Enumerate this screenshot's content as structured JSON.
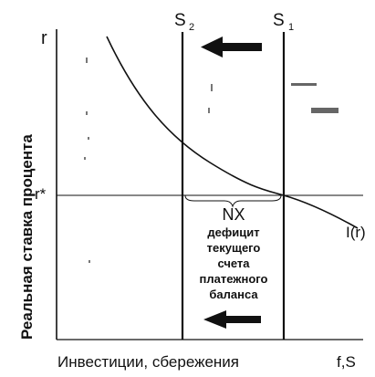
{
  "axes": {
    "y_symbol": "r",
    "y_title": "Реальная ставка процента",
    "x_title": "Инвестиции, сбережения",
    "x_symbol": "f,S",
    "r_star": "r*"
  },
  "curves": {
    "s2": {
      "label": "S",
      "subscript": "2"
    },
    "s1": {
      "label": "S",
      "subscript": "1"
    },
    "investment": {
      "label": "I(r)"
    }
  },
  "gap": {
    "title": "NX",
    "description_lines": [
      "дефицит",
      "текущего",
      "счета",
      "платежного",
      "баланса"
    ]
  },
  "arrows": {
    "top": {
      "direction": "left",
      "shape": "arrow-left-icon"
    },
    "bottom": {
      "direction": "left",
      "shape": "arrow-left-icon"
    }
  },
  "colors": {
    "ink": "#111111",
    "background": "#ffffff"
  }
}
